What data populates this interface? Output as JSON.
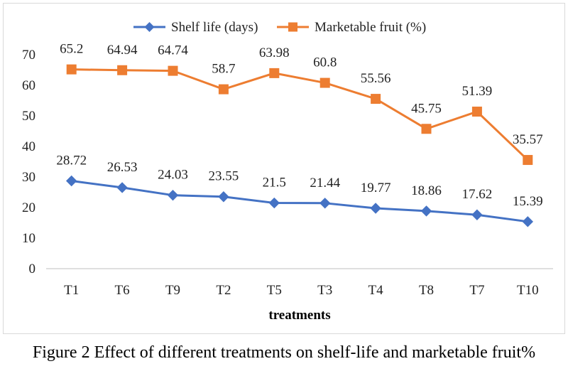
{
  "caption": "Figure 2 Effect of different treatments on shelf-life and marketable fruit%",
  "colors": {
    "shelf_life": "#4472C4",
    "marketable": "#ED7D31",
    "grid": "#d9d9d9",
    "axis": "#bfbfbf"
  },
  "chart_data": {
    "type": "line",
    "xlabel": "treatments",
    "ylabel": "",
    "ylim": [
      0,
      70
    ],
    "yticks": [
      0,
      10,
      20,
      30,
      40,
      50,
      60,
      70
    ],
    "grid": false,
    "legend_position": "top",
    "categories": [
      "T1",
      "T6",
      "T9",
      "T2",
      "T5",
      "T3",
      "T4",
      "T8",
      "T7",
      "T10"
    ],
    "series": [
      {
        "name": "Shelf life (days)",
        "marker": "diamond",
        "values": [
          28.72,
          26.53,
          24.03,
          23.55,
          21.5,
          21.44,
          19.77,
          18.86,
          17.62,
          15.39
        ]
      },
      {
        "name": "Marketable fruit (%)",
        "marker": "square",
        "values": [
          65.2,
          64.94,
          64.74,
          58.7,
          63.98,
          60.8,
          55.56,
          45.75,
          51.39,
          35.57
        ]
      }
    ]
  }
}
